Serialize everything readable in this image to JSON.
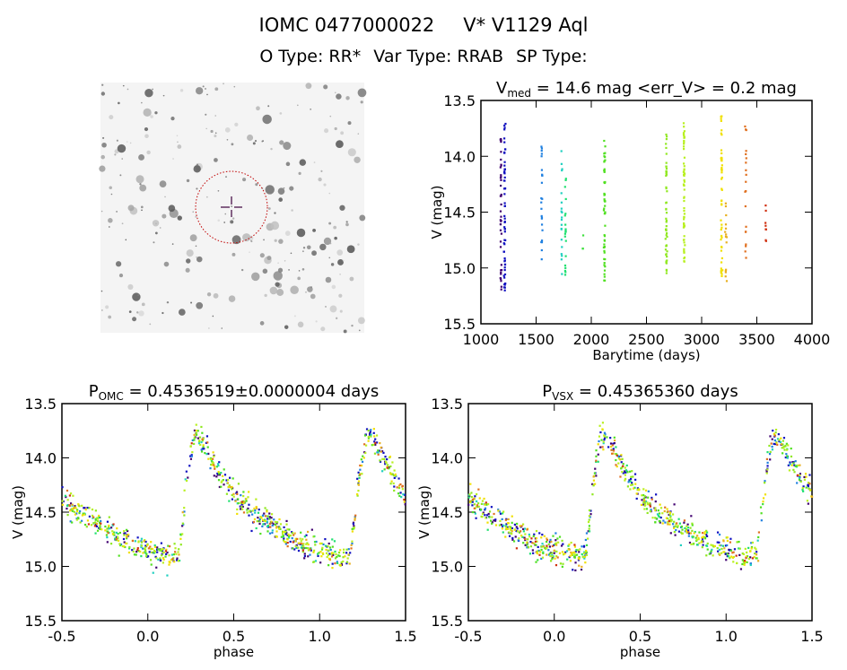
{
  "header": {
    "id": "IOMC 0477000022",
    "name": "V* V1129 Aql",
    "otype": "O Type: RR*",
    "vartype": "Var Type: RRAB",
    "sptype": "SP Type:"
  },
  "finding_chart": {
    "target_circle_color": "#c00000"
  },
  "chart_data": [
    {
      "type": "scatter",
      "title_main": "V",
      "title_sub": "med",
      "title_rest": " = 14.6 mag <err_V> = 0.2 mag",
      "xlabel": "Barytime (days)",
      "ylabel": "V (mag)",
      "xlim": [
        1000,
        4000
      ],
      "ylim": [
        13.5,
        15.5
      ],
      "y_inverted": true,
      "xticks": [
        "1000",
        "1500",
        "2000",
        "2500",
        "3000",
        "3500",
        "4000"
      ],
      "yticks": [
        "13.5",
        "14.0",
        "14.5",
        "15.0",
        "15.5"
      ],
      "clusters": [
        {
          "x": 1180,
          "ymin": 13.8,
          "ymax": 15.25,
          "color": "#400070",
          "n": 40
        },
        {
          "x": 1215,
          "ymin": 13.7,
          "ymax": 15.2,
          "color": "#1010c0",
          "n": 60
        },
        {
          "x": 1550,
          "ymin": 13.8,
          "ymax": 14.97,
          "color": "#2080e0",
          "n": 25
        },
        {
          "x": 1730,
          "ymin": 13.95,
          "ymax": 15.1,
          "color": "#20d0c0",
          "n": 20
        },
        {
          "x": 1765,
          "ymin": 14.2,
          "ymax": 15.23,
          "color": "#20e070",
          "n": 20
        },
        {
          "x": 1920,
          "ymin": 14.65,
          "ymax": 14.88,
          "color": "#40e040",
          "n": 3
        },
        {
          "x": 2120,
          "ymin": 13.85,
          "ymax": 15.15,
          "color": "#50e020",
          "n": 50
        },
        {
          "x": 2680,
          "ymin": 13.78,
          "ymax": 15.05,
          "color": "#90e820",
          "n": 50
        },
        {
          "x": 2840,
          "ymin": 13.7,
          "ymax": 15.05,
          "color": "#b8f020",
          "n": 60
        },
        {
          "x": 3180,
          "ymin": 13.6,
          "ymax": 15.1,
          "color": "#f0e000",
          "n": 50
        },
        {
          "x": 3220,
          "ymin": 14.35,
          "ymax": 15.25,
          "color": "#e8b020",
          "n": 15
        },
        {
          "x": 3400,
          "ymin": 13.68,
          "ymax": 15.0,
          "color": "#e07020",
          "n": 20
        },
        {
          "x": 3580,
          "ymin": 14.42,
          "ymax": 14.8,
          "color": "#d03010",
          "n": 8
        }
      ]
    },
    {
      "type": "scatter",
      "title_main": "P",
      "title_sub": "OMC",
      "title_rest": " = 0.4536519±0.0000004 days",
      "xlabel": "phase",
      "ylabel": "V (mag)",
      "xlim": [
        -0.5,
        1.5
      ],
      "ylim": [
        13.5,
        15.5
      ],
      "y_inverted": true,
      "xticks": [
        "-0.5",
        "0.0",
        "0.5",
        "1.0",
        "1.5"
      ],
      "yticks": [
        "13.5",
        "14.0",
        "14.5",
        "15.0",
        "15.5"
      ],
      "mean_curve": [
        [
          0.0,
          14.85
        ],
        [
          0.1,
          14.9
        ],
        [
          0.18,
          14.9
        ],
        [
          0.22,
          14.3
        ],
        [
          0.27,
          13.8
        ],
        [
          0.3,
          13.8
        ],
        [
          0.4,
          14.1
        ],
        [
          0.5,
          14.35
        ],
        [
          0.6,
          14.5
        ],
        [
          0.7,
          14.6
        ],
        [
          0.8,
          14.7
        ],
        [
          0.9,
          14.8
        ],
        [
          1.0,
          14.85
        ]
      ],
      "scatter_mag": 0.12
    },
    {
      "type": "scatter",
      "title_main": "P",
      "title_sub": "VSX",
      "title_rest": " = 0.45365360 days",
      "xlabel": "phase",
      "ylabel": "V (mag)",
      "xlim": [
        -0.5,
        1.5
      ],
      "ylim": [
        13.5,
        15.5
      ],
      "y_inverted": true,
      "xticks": [
        "-0.5",
        "0.0",
        "0.5",
        "1.0",
        "1.5"
      ],
      "yticks": [
        "13.5",
        "14.0",
        "14.5",
        "15.0",
        "15.5"
      ],
      "mean_curve": [
        [
          0.0,
          14.85
        ],
        [
          0.1,
          14.9
        ],
        [
          0.18,
          14.9
        ],
        [
          0.22,
          14.3
        ],
        [
          0.27,
          13.8
        ],
        [
          0.3,
          13.8
        ],
        [
          0.4,
          14.1
        ],
        [
          0.5,
          14.35
        ],
        [
          0.6,
          14.5
        ],
        [
          0.7,
          14.6
        ],
        [
          0.8,
          14.7
        ],
        [
          0.9,
          14.8
        ],
        [
          1.0,
          14.85
        ]
      ],
      "scatter_mag": 0.12
    }
  ]
}
